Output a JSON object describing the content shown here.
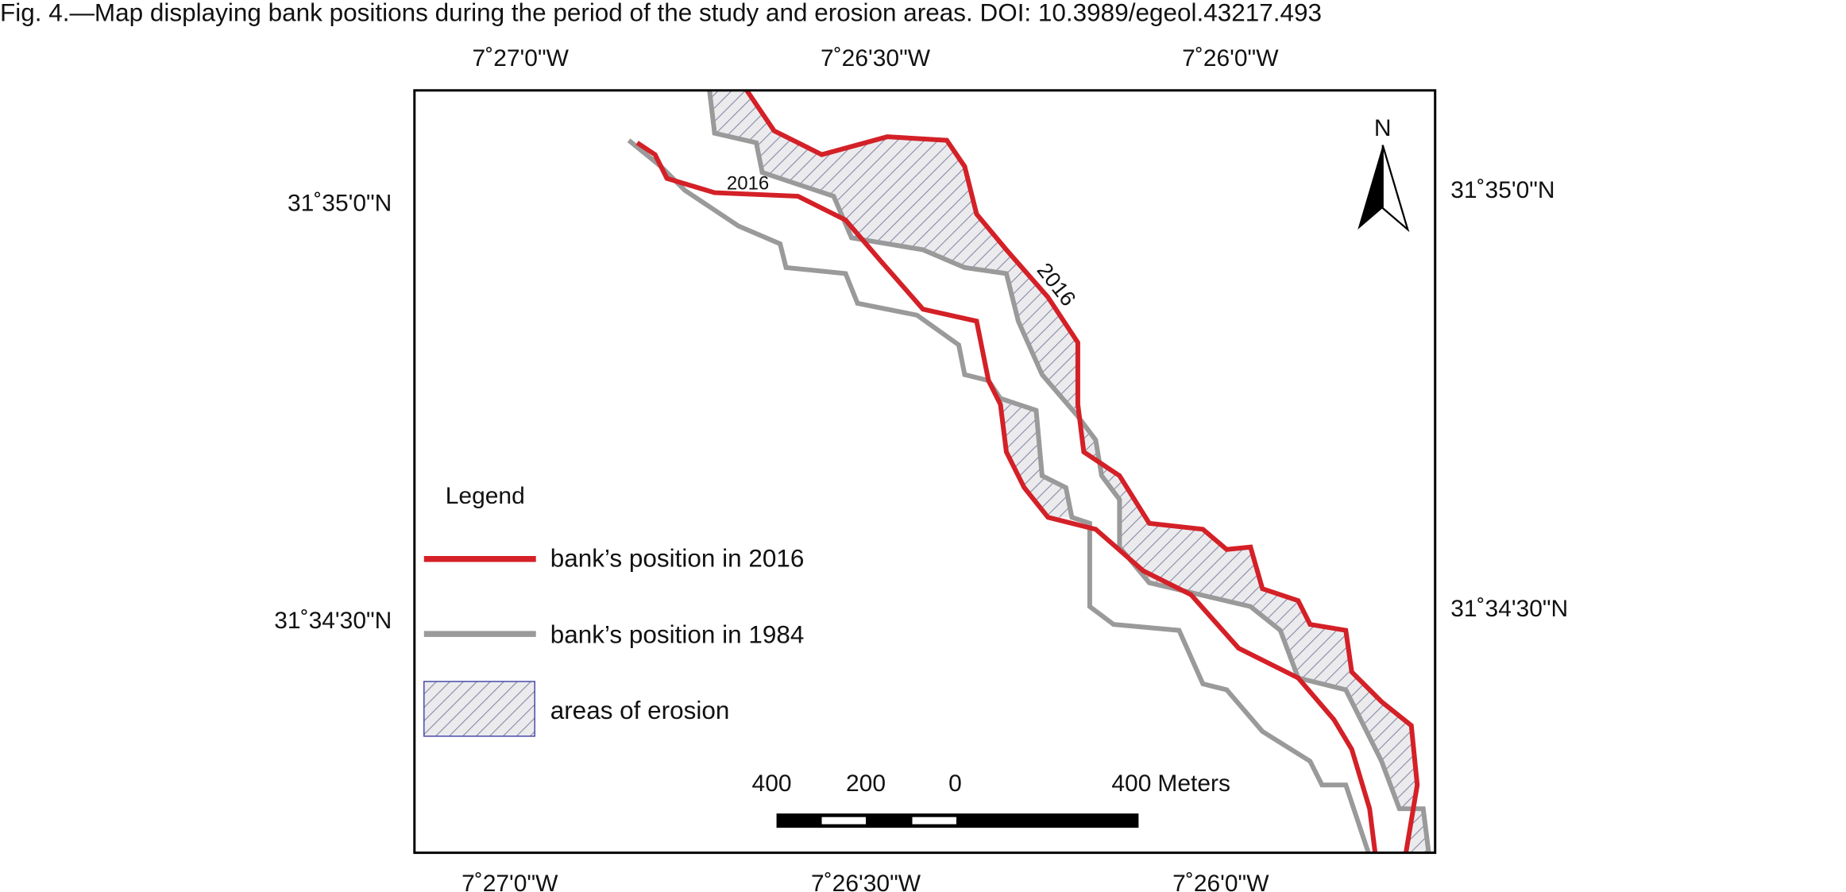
{
  "caption": "Fig. 4.—Map displaying bank positions during the period of the study and erosion areas. DOI: 10.3989/egeol.43217.493",
  "coordinates": {
    "top": [
      "7˚27'0\"W",
      "7˚26'30\"W",
      "7˚26'0\"W"
    ],
    "bottom": [
      "7˚27'0\"W",
      "7˚26'30\"W",
      "7˚26'0\"W"
    ],
    "left": [
      "31˚35'0\"N",
      "31˚34'30\"N"
    ],
    "right": [
      "31˚35'0\"N",
      "31˚34'30\"N"
    ]
  },
  "map_labels": [
    "2016",
    "2016"
  ],
  "north_arrow": "N",
  "legend": {
    "title": "Legend",
    "items": [
      "bank’s position in 2016",
      "bank’s position in 1984",
      "areas of erosion"
    ]
  },
  "scale_bar": {
    "labels": [
      "400",
      "200",
      "0",
      "400"
    ],
    "unit": "Meters"
  }
}
